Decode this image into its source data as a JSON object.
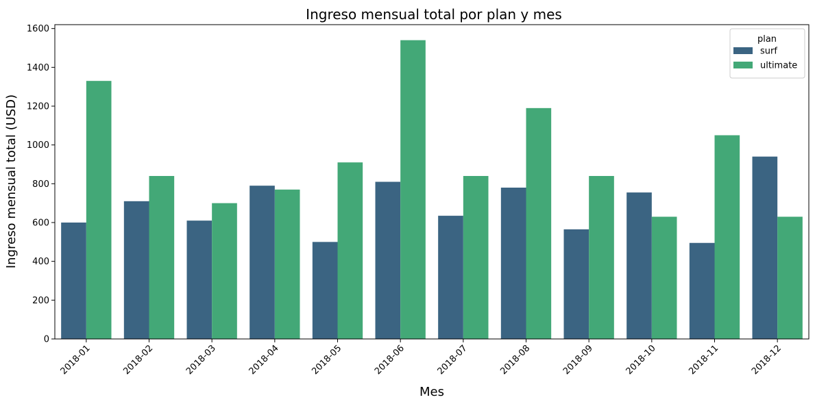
{
  "chart_data": {
    "type": "bar",
    "title": "Ingreso mensual total por plan y mes",
    "xlabel": "Mes",
    "ylabel": "Ingreso mensual total (USD)",
    "categories": [
      "2018-01",
      "2018-02",
      "2018-03",
      "2018-04",
      "2018-05",
      "2018-06",
      "2018-07",
      "2018-08",
      "2018-09",
      "2018-10",
      "2018-11",
      "2018-12"
    ],
    "series": [
      {
        "name": "surf",
        "color": "#3b6482",
        "values": [
          600,
          710,
          610,
          790,
          500,
          810,
          635,
          780,
          565,
          755,
          495,
          940
        ]
      },
      {
        "name": "ultimate",
        "color": "#43a877",
        "values": [
          1330,
          840,
          700,
          770,
          910,
          1540,
          840,
          1190,
          840,
          630,
          1050,
          630
        ]
      }
    ],
    "ylim": [
      0,
      1620
    ],
    "yticks": [
      0,
      200,
      400,
      600,
      800,
      1000,
      1200,
      1400,
      1600
    ],
    "legend": {
      "title": "plan",
      "position": "top-right"
    },
    "grid": false
  }
}
